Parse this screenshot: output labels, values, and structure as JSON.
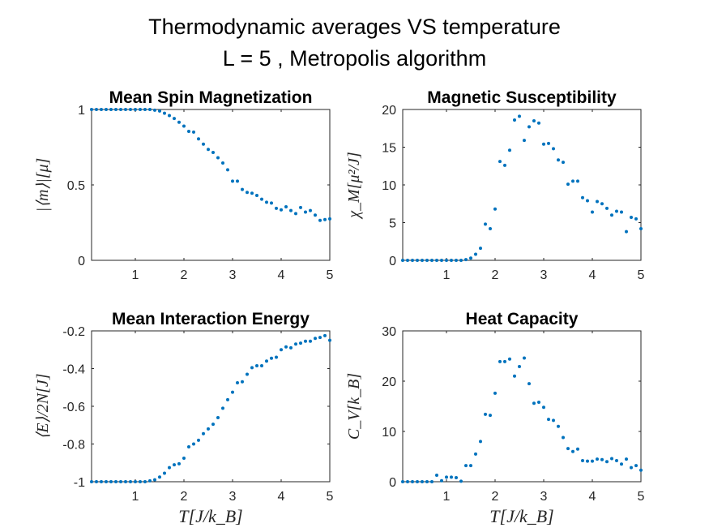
{
  "figure": {
    "title_line1": "Thermodynamic averages VS temperature",
    "title_line2": "L = 5 ,   Metropolis algorithm",
    "x_axis_label": "T[J/k_B]",
    "marker_color": "#0072BD"
  },
  "chart_data": [
    {
      "type": "scatter",
      "title": "Mean Spin Magnetization",
      "xlabel": "",
      "ylabel": "|⟨m⟩|[μ]",
      "xlim": [
        0.1,
        5
      ],
      "ylim": [
        0,
        1
      ],
      "xticks": [
        1,
        2,
        3,
        4,
        5
      ],
      "yticks": [
        0,
        0.5,
        1
      ],
      "x": [
        0.1,
        0.2,
        0.3,
        0.4,
        0.5,
        0.6,
        0.7,
        0.8,
        0.9,
        1.0,
        1.1,
        1.2,
        1.3,
        1.4,
        1.5,
        1.6,
        1.7,
        1.8,
        1.9,
        2.0,
        2.1,
        2.2,
        2.3,
        2.4,
        2.5,
        2.6,
        2.7,
        2.8,
        2.9,
        3.0,
        3.1,
        3.2,
        3.3,
        3.4,
        3.5,
        3.6,
        3.7,
        3.8,
        3.9,
        4.0,
        4.1,
        4.2,
        4.3,
        4.4,
        4.5,
        4.6,
        4.7,
        4.8,
        4.9,
        5.0
      ],
      "y": [
        1,
        1,
        1,
        1,
        1,
        1,
        1,
        1,
        1,
        1,
        1,
        1,
        1,
        0.995,
        0.99,
        0.975,
        0.96,
        0.94,
        0.915,
        0.89,
        0.855,
        0.85,
        0.805,
        0.77,
        0.735,
        0.715,
        0.68,
        0.645,
        0.6,
        0.525,
        0.525,
        0.47,
        0.45,
        0.445,
        0.43,
        0.405,
        0.385,
        0.38,
        0.345,
        0.335,
        0.355,
        0.33,
        0.31,
        0.35,
        0.32,
        0.33,
        0.3,
        0.265,
        0.27,
        0.275
      ]
    },
    {
      "type": "scatter",
      "title": "Magnetic Susceptibility",
      "xlabel": "",
      "ylabel": "χ_M[μ²/J]",
      "xlim": [
        0.1,
        5
      ],
      "ylim": [
        0,
        20
      ],
      "xticks": [
        1,
        2,
        3,
        4,
        5
      ],
      "yticks": [
        0,
        5,
        10,
        15,
        20
      ],
      "x": [
        0.1,
        0.2,
        0.3,
        0.4,
        0.5,
        0.6,
        0.7,
        0.8,
        0.9,
        1.0,
        1.1,
        1.2,
        1.3,
        1.4,
        1.5,
        1.6,
        1.7,
        1.8,
        1.9,
        2.0,
        2.1,
        2.2,
        2.3,
        2.4,
        2.5,
        2.6,
        2.7,
        2.8,
        2.9,
        3.0,
        3.1,
        3.2,
        3.3,
        3.4,
        3.5,
        3.6,
        3.7,
        3.8,
        3.9,
        4.0,
        4.1,
        4.2,
        4.3,
        4.4,
        4.5,
        4.6,
        4.7,
        4.8,
        4.9,
        5.0
      ],
      "y": [
        0,
        0,
        0,
        0,
        0,
        0,
        0,
        0,
        0,
        0,
        0,
        0,
        0,
        0.1,
        0.3,
        0.8,
        1.6,
        4.8,
        4.2,
        6.8,
        13.1,
        12.6,
        14.6,
        18.6,
        19.1,
        15.9,
        17.7,
        18.5,
        18.2,
        15.4,
        15.5,
        14.8,
        13.3,
        13.0,
        10.1,
        10.5,
        10.5,
        8.3,
        7.9,
        6.4,
        7.8,
        7.5,
        6.9,
        6.0,
        6.5,
        6.4,
        3.8,
        5.7,
        5.5,
        4.2
      ]
    },
    {
      "type": "scatter",
      "title": "Mean Interaction Energy",
      "xlabel": "T[J/k_B]",
      "ylabel": "⟨E⟩/2N[J]",
      "xlim": [
        0.1,
        5
      ],
      "ylim": [
        -1,
        -0.2
      ],
      "xticks": [
        1,
        2,
        3,
        4,
        5
      ],
      "yticks": [
        -1,
        -0.8,
        -0.6,
        -0.4,
        -0.2
      ],
      "x": [
        0.1,
        0.2,
        0.3,
        0.4,
        0.5,
        0.6,
        0.7,
        0.8,
        0.9,
        1.0,
        1.1,
        1.2,
        1.3,
        1.4,
        1.5,
        1.6,
        1.7,
        1.8,
        1.9,
        2.0,
        2.1,
        2.2,
        2.3,
        2.4,
        2.5,
        2.6,
        2.7,
        2.8,
        2.9,
        3.0,
        3.1,
        3.2,
        3.3,
        3.4,
        3.5,
        3.6,
        3.7,
        3.8,
        3.9,
        4.0,
        4.1,
        4.2,
        4.3,
        4.4,
        4.5,
        4.6,
        4.7,
        4.8,
        4.9,
        5.0
      ],
      "y": [
        -1,
        -1,
        -1,
        -1,
        -1,
        -1,
        -1,
        -1,
        -1,
        -1,
        -1,
        -1,
        -0.995,
        -0.99,
        -0.975,
        -0.955,
        -0.925,
        -0.91,
        -0.905,
        -0.875,
        -0.815,
        -0.8,
        -0.78,
        -0.745,
        -0.72,
        -0.695,
        -0.66,
        -0.61,
        -0.565,
        -0.525,
        -0.475,
        -0.47,
        -0.43,
        -0.395,
        -0.385,
        -0.385,
        -0.36,
        -0.345,
        -0.34,
        -0.3,
        -0.285,
        -0.29,
        -0.27,
        -0.265,
        -0.255,
        -0.255,
        -0.24,
        -0.235,
        -0.225,
        -0.25
      ]
    },
    {
      "type": "scatter",
      "title": "Heat Capacity",
      "xlabel": "T[J/k_B]",
      "ylabel": "C_V[k_B]",
      "xlim": [
        0.1,
        5
      ],
      "ylim": [
        0,
        30
      ],
      "xticks": [
        1,
        2,
        3,
        4,
        5
      ],
      "yticks": [
        0,
        10,
        20,
        30
      ],
      "x": [
        0.1,
        0.2,
        0.3,
        0.4,
        0.5,
        0.6,
        0.7,
        0.8,
        0.9,
        1.0,
        1.1,
        1.2,
        1.3,
        1.4,
        1.5,
        1.6,
        1.7,
        1.8,
        1.9,
        2.0,
        2.1,
        2.2,
        2.3,
        2.4,
        2.5,
        2.6,
        2.7,
        2.8,
        2.9,
        3.0,
        3.1,
        3.2,
        3.3,
        3.4,
        3.5,
        3.6,
        3.7,
        3.8,
        3.9,
        4.0,
        4.1,
        4.2,
        4.3,
        4.4,
        4.5,
        4.6,
        4.7,
        4.8,
        4.9,
        5.0
      ],
      "y": [
        0,
        0,
        0,
        0,
        0,
        0,
        0,
        1.3,
        0.2,
        0.9,
        0.9,
        0.8,
        0.1,
        3.2,
        3.2,
        5.5,
        8.0,
        13.4,
        13.2,
        17.6,
        23.9,
        23.9,
        24.4,
        21.0,
        22.9,
        24.6,
        19.5,
        15.6,
        15.8,
        14.8,
        12.4,
        12.2,
        11.0,
        8.8,
        6.6,
        6.0,
        6.5,
        4.2,
        4.1,
        4.1,
        4.5,
        4.4,
        4.0,
        4.6,
        4.2,
        3.5,
        4.5,
        2.8,
        3.2,
        2.3
      ]
    }
  ]
}
